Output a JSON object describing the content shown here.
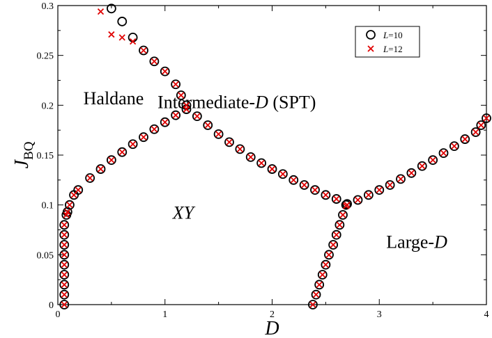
{
  "chart_data": {
    "type": "scatter",
    "xlabel": "D",
    "ylabel_main": "J",
    "ylabel_sub": "BQ",
    "xlim": [
      0,
      4
    ],
    "ylim": [
      0,
      0.3
    ],
    "x_ticks": [
      0,
      1,
      2,
      3,
      4
    ],
    "x_tick_labels": [
      "0",
      "1",
      "2",
      "3",
      "4"
    ],
    "y_ticks": [
      0,
      0.05,
      0.1,
      0.15,
      0.2,
      0.25,
      0.3
    ],
    "y_tick_labels": [
      "0",
      "0.05",
      "0.1",
      "0.15",
      "0.2",
      "0.25",
      "0.3"
    ],
    "grid": false,
    "legend_position": "top-right",
    "legend": [
      {
        "prefix": "L",
        "suffix": "=10",
        "marker": "circle",
        "color": "#000000"
      },
      {
        "prefix": "L",
        "suffix": "=12",
        "marker": "x",
        "color": "#e00000"
      }
    ],
    "annotations": [
      {
        "text": "Haldane",
        "x": 0.52,
        "y": 0.201
      },
      {
        "text_pre": "Intermediate-",
        "italic": "D",
        "text_post": " (SPT)",
        "x": 1.67,
        "y": 0.197
      },
      {
        "text_pre": "",
        "italic": "XY",
        "text_post": "",
        "x": 1.17,
        "y": 0.086
      },
      {
        "text_pre": "Large-",
        "italic": "D",
        "text_post": "",
        "x": 3.35,
        "y": 0.057
      }
    ],
    "series": [
      {
        "name": "L=10",
        "marker": "circle",
        "color": "#000000",
        "points": [
          [
            0.06,
            0.0
          ],
          [
            0.06,
            0.01
          ],
          [
            0.06,
            0.02
          ],
          [
            0.06,
            0.03
          ],
          [
            0.06,
            0.04
          ],
          [
            0.06,
            0.05
          ],
          [
            0.06,
            0.06
          ],
          [
            0.06,
            0.07
          ],
          [
            0.06,
            0.08
          ],
          [
            0.08,
            0.09
          ],
          [
            0.09,
            0.093
          ],
          [
            0.11,
            0.1
          ],
          [
            0.15,
            0.11
          ],
          [
            0.19,
            0.115
          ],
          [
            0.3,
            0.127
          ],
          [
            0.4,
            0.136
          ],
          [
            0.5,
            0.145
          ],
          [
            0.6,
            0.153
          ],
          [
            0.7,
            0.161
          ],
          [
            0.8,
            0.168
          ],
          [
            0.9,
            0.176
          ],
          [
            1.0,
            0.183
          ],
          [
            1.1,
            0.19
          ],
          [
            1.2,
            0.196
          ],
          [
            1.3,
            0.189
          ],
          [
            1.4,
            0.18
          ],
          [
            1.5,
            0.171
          ],
          [
            1.6,
            0.163
          ],
          [
            1.7,
            0.156
          ],
          [
            1.8,
            0.148
          ],
          [
            1.9,
            0.142
          ],
          [
            2.0,
            0.136
          ],
          [
            2.1,
            0.131
          ],
          [
            2.2,
            0.125
          ],
          [
            2.3,
            0.12
          ],
          [
            2.4,
            0.115
          ],
          [
            2.5,
            0.11
          ],
          [
            2.6,
            0.106
          ],
          [
            2.7,
            0.101
          ],
          [
            2.8,
            0.105
          ],
          [
            2.9,
            0.11
          ],
          [
            3.0,
            0.115
          ],
          [
            3.1,
            0.12
          ],
          [
            3.2,
            0.126
          ],
          [
            3.3,
            0.132
          ],
          [
            3.4,
            0.139
          ],
          [
            3.5,
            0.145
          ],
          [
            3.6,
            0.152
          ],
          [
            3.7,
            0.159
          ],
          [
            3.8,
            0.166
          ],
          [
            3.9,
            0.173
          ],
          [
            3.95,
            0.18
          ],
          [
            4.0,
            0.187
          ],
          [
            0.5,
            0.297
          ],
          [
            0.6,
            0.284
          ],
          [
            0.7,
            0.268
          ],
          [
            0.8,
            0.255
          ],
          [
            0.9,
            0.244
          ],
          [
            1.0,
            0.234
          ],
          [
            1.1,
            0.221
          ],
          [
            1.15,
            0.21
          ],
          [
            1.2,
            0.2
          ],
          [
            2.38,
            0.0
          ],
          [
            2.41,
            0.01
          ],
          [
            2.44,
            0.02
          ],
          [
            2.47,
            0.03
          ],
          [
            2.5,
            0.04
          ],
          [
            2.53,
            0.05
          ],
          [
            2.57,
            0.06
          ],
          [
            2.6,
            0.07
          ],
          [
            2.63,
            0.08
          ],
          [
            2.66,
            0.09
          ],
          [
            2.69,
            0.1
          ]
        ]
      },
      {
        "name": "L=12",
        "marker": "x",
        "color": "#e00000",
        "points": [
          [
            0.06,
            0.0
          ],
          [
            0.06,
            0.01
          ],
          [
            0.06,
            0.02
          ],
          [
            0.06,
            0.03
          ],
          [
            0.06,
            0.04
          ],
          [
            0.06,
            0.05
          ],
          [
            0.06,
            0.06
          ],
          [
            0.06,
            0.07
          ],
          [
            0.06,
            0.08
          ],
          [
            0.08,
            0.09
          ],
          [
            0.09,
            0.093
          ],
          [
            0.11,
            0.1
          ],
          [
            0.15,
            0.11
          ],
          [
            0.19,
            0.115
          ],
          [
            0.3,
            0.127
          ],
          [
            0.4,
            0.136
          ],
          [
            0.5,
            0.145
          ],
          [
            0.6,
            0.153
          ],
          [
            0.7,
            0.161
          ],
          [
            0.8,
            0.168
          ],
          [
            0.9,
            0.176
          ],
          [
            1.0,
            0.183
          ],
          [
            1.1,
            0.19
          ],
          [
            1.2,
            0.196
          ],
          [
            1.3,
            0.189
          ],
          [
            1.4,
            0.18
          ],
          [
            1.5,
            0.171
          ],
          [
            1.6,
            0.163
          ],
          [
            1.7,
            0.156
          ],
          [
            1.8,
            0.148
          ],
          [
            1.9,
            0.142
          ],
          [
            2.0,
            0.136
          ],
          [
            2.1,
            0.131
          ],
          [
            2.2,
            0.125
          ],
          [
            2.3,
            0.12
          ],
          [
            2.4,
            0.115
          ],
          [
            2.5,
            0.11
          ],
          [
            2.6,
            0.106
          ],
          [
            2.7,
            0.1
          ],
          [
            2.8,
            0.105
          ],
          [
            2.9,
            0.11
          ],
          [
            3.0,
            0.115
          ],
          [
            3.1,
            0.12
          ],
          [
            3.2,
            0.126
          ],
          [
            3.3,
            0.132
          ],
          [
            3.4,
            0.139
          ],
          [
            3.5,
            0.145
          ],
          [
            3.6,
            0.152
          ],
          [
            3.7,
            0.159
          ],
          [
            3.8,
            0.166
          ],
          [
            3.9,
            0.173
          ],
          [
            3.95,
            0.18
          ],
          [
            4.0,
            0.187
          ],
          [
            0.4,
            0.294
          ],
          [
            0.5,
            0.271
          ],
          [
            0.6,
            0.268
          ],
          [
            0.7,
            0.264
          ],
          [
            0.8,
            0.255
          ],
          [
            0.9,
            0.244
          ],
          [
            1.0,
            0.234
          ],
          [
            1.1,
            0.221
          ],
          [
            1.15,
            0.21
          ],
          [
            1.2,
            0.2
          ],
          [
            2.38,
            0.0
          ],
          [
            2.41,
            0.01
          ],
          [
            2.44,
            0.02
          ],
          [
            2.47,
            0.03
          ],
          [
            2.5,
            0.04
          ],
          [
            2.53,
            0.05
          ],
          [
            2.57,
            0.06
          ],
          [
            2.6,
            0.07
          ],
          [
            2.63,
            0.08
          ],
          [
            2.66,
            0.09
          ],
          [
            2.69,
            0.099
          ]
        ]
      }
    ]
  }
}
